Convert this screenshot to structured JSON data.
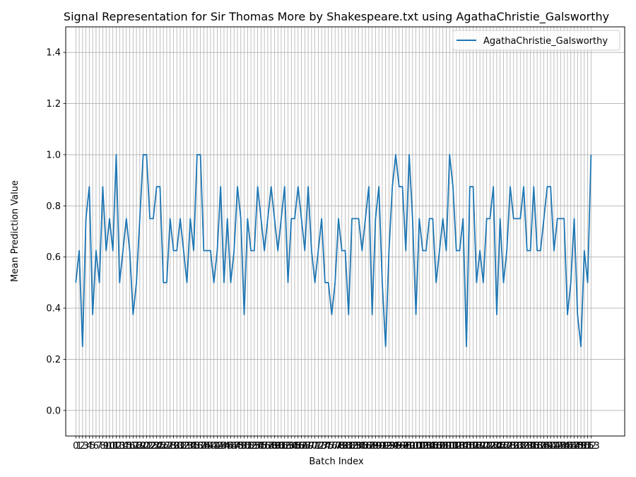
{
  "chart_data": {
    "type": "line",
    "title": "Signal Representation for Sir Thomas More by Shakespeare.txt using AgathaChristie_Galsworthy",
    "xlabel": "Batch Index",
    "ylabel": "Mean Prediction Value",
    "xlim": [
      -3,
      163
    ],
    "ylim": [
      -0.1,
      1.5
    ],
    "yticks": [
      0.0,
      0.2,
      0.4,
      0.6,
      0.8,
      1.0,
      1.2,
      1.4
    ],
    "ytick_labels": [
      "0.0",
      "0.2",
      "0.4",
      "0.6",
      "0.8",
      "1.0",
      "1.2",
      "1.4"
    ],
    "grid": true,
    "legend_position": "upper-right",
    "series": [
      {
        "name": "AgathaChristie_Galsworthy",
        "color": "#1f77b4",
        "values": [
          0.5,
          0.625,
          0.25,
          0.75,
          0.875,
          0.375,
          0.625,
          0.5,
          0.875,
          0.625,
          0.75,
          0.625,
          1.0,
          0.5,
          0.625,
          0.75,
          0.625,
          0.375,
          0.5,
          0.75,
          1.0,
          1.0,
          0.75,
          0.75,
          0.875,
          0.875,
          0.5,
          0.5,
          0.75,
          0.625,
          0.625,
          0.75,
          0.625,
          0.5,
          0.75,
          0.625,
          1.0,
          1.0,
          0.625,
          0.625,
          0.625,
          0.5,
          0.625,
          0.875,
          0.5,
          0.75,
          0.5,
          0.625,
          0.875,
          0.75,
          0.375,
          0.75,
          0.625,
          0.625,
          0.875,
          0.75,
          0.625,
          0.75,
          0.875,
          0.75,
          0.625,
          0.75,
          0.875,
          0.5,
          0.75,
          0.75,
          0.875,
          0.75,
          0.625,
          0.875,
          0.625,
          0.5,
          0.625,
          0.75,
          0.5,
          0.5,
          0.375,
          0.5,
          0.75,
          0.625,
          0.625,
          0.375,
          0.75,
          0.75,
          0.75,
          0.625,
          0.75,
          0.875,
          0.375,
          0.75,
          0.875,
          0.5,
          0.25,
          0.625,
          0.875,
          1.0,
          0.875,
          0.875,
          0.625,
          1.0,
          0.75,
          0.375,
          0.75,
          0.625,
          0.625,
          0.75,
          0.75,
          0.5,
          0.625,
          0.75,
          0.625,
          1.0,
          0.875,
          0.625,
          0.625,
          0.75,
          0.25,
          0.875,
          0.875,
          0.5,
          0.625,
          0.5,
          0.75,
          0.75,
          0.875,
          0.375,
          0.75,
          0.5,
          0.625,
          0.875,
          0.75,
          0.75,
          0.75,
          0.875,
          0.625,
          0.625,
          0.875,
          0.625,
          0.625,
          0.75,
          0.875,
          0.875,
          0.625,
          0.75,
          0.75,
          0.75,
          0.375,
          0.5,
          0.75,
          0.375,
          0.25,
          0.625,
          0.5,
          1.0
        ]
      }
    ]
  }
}
